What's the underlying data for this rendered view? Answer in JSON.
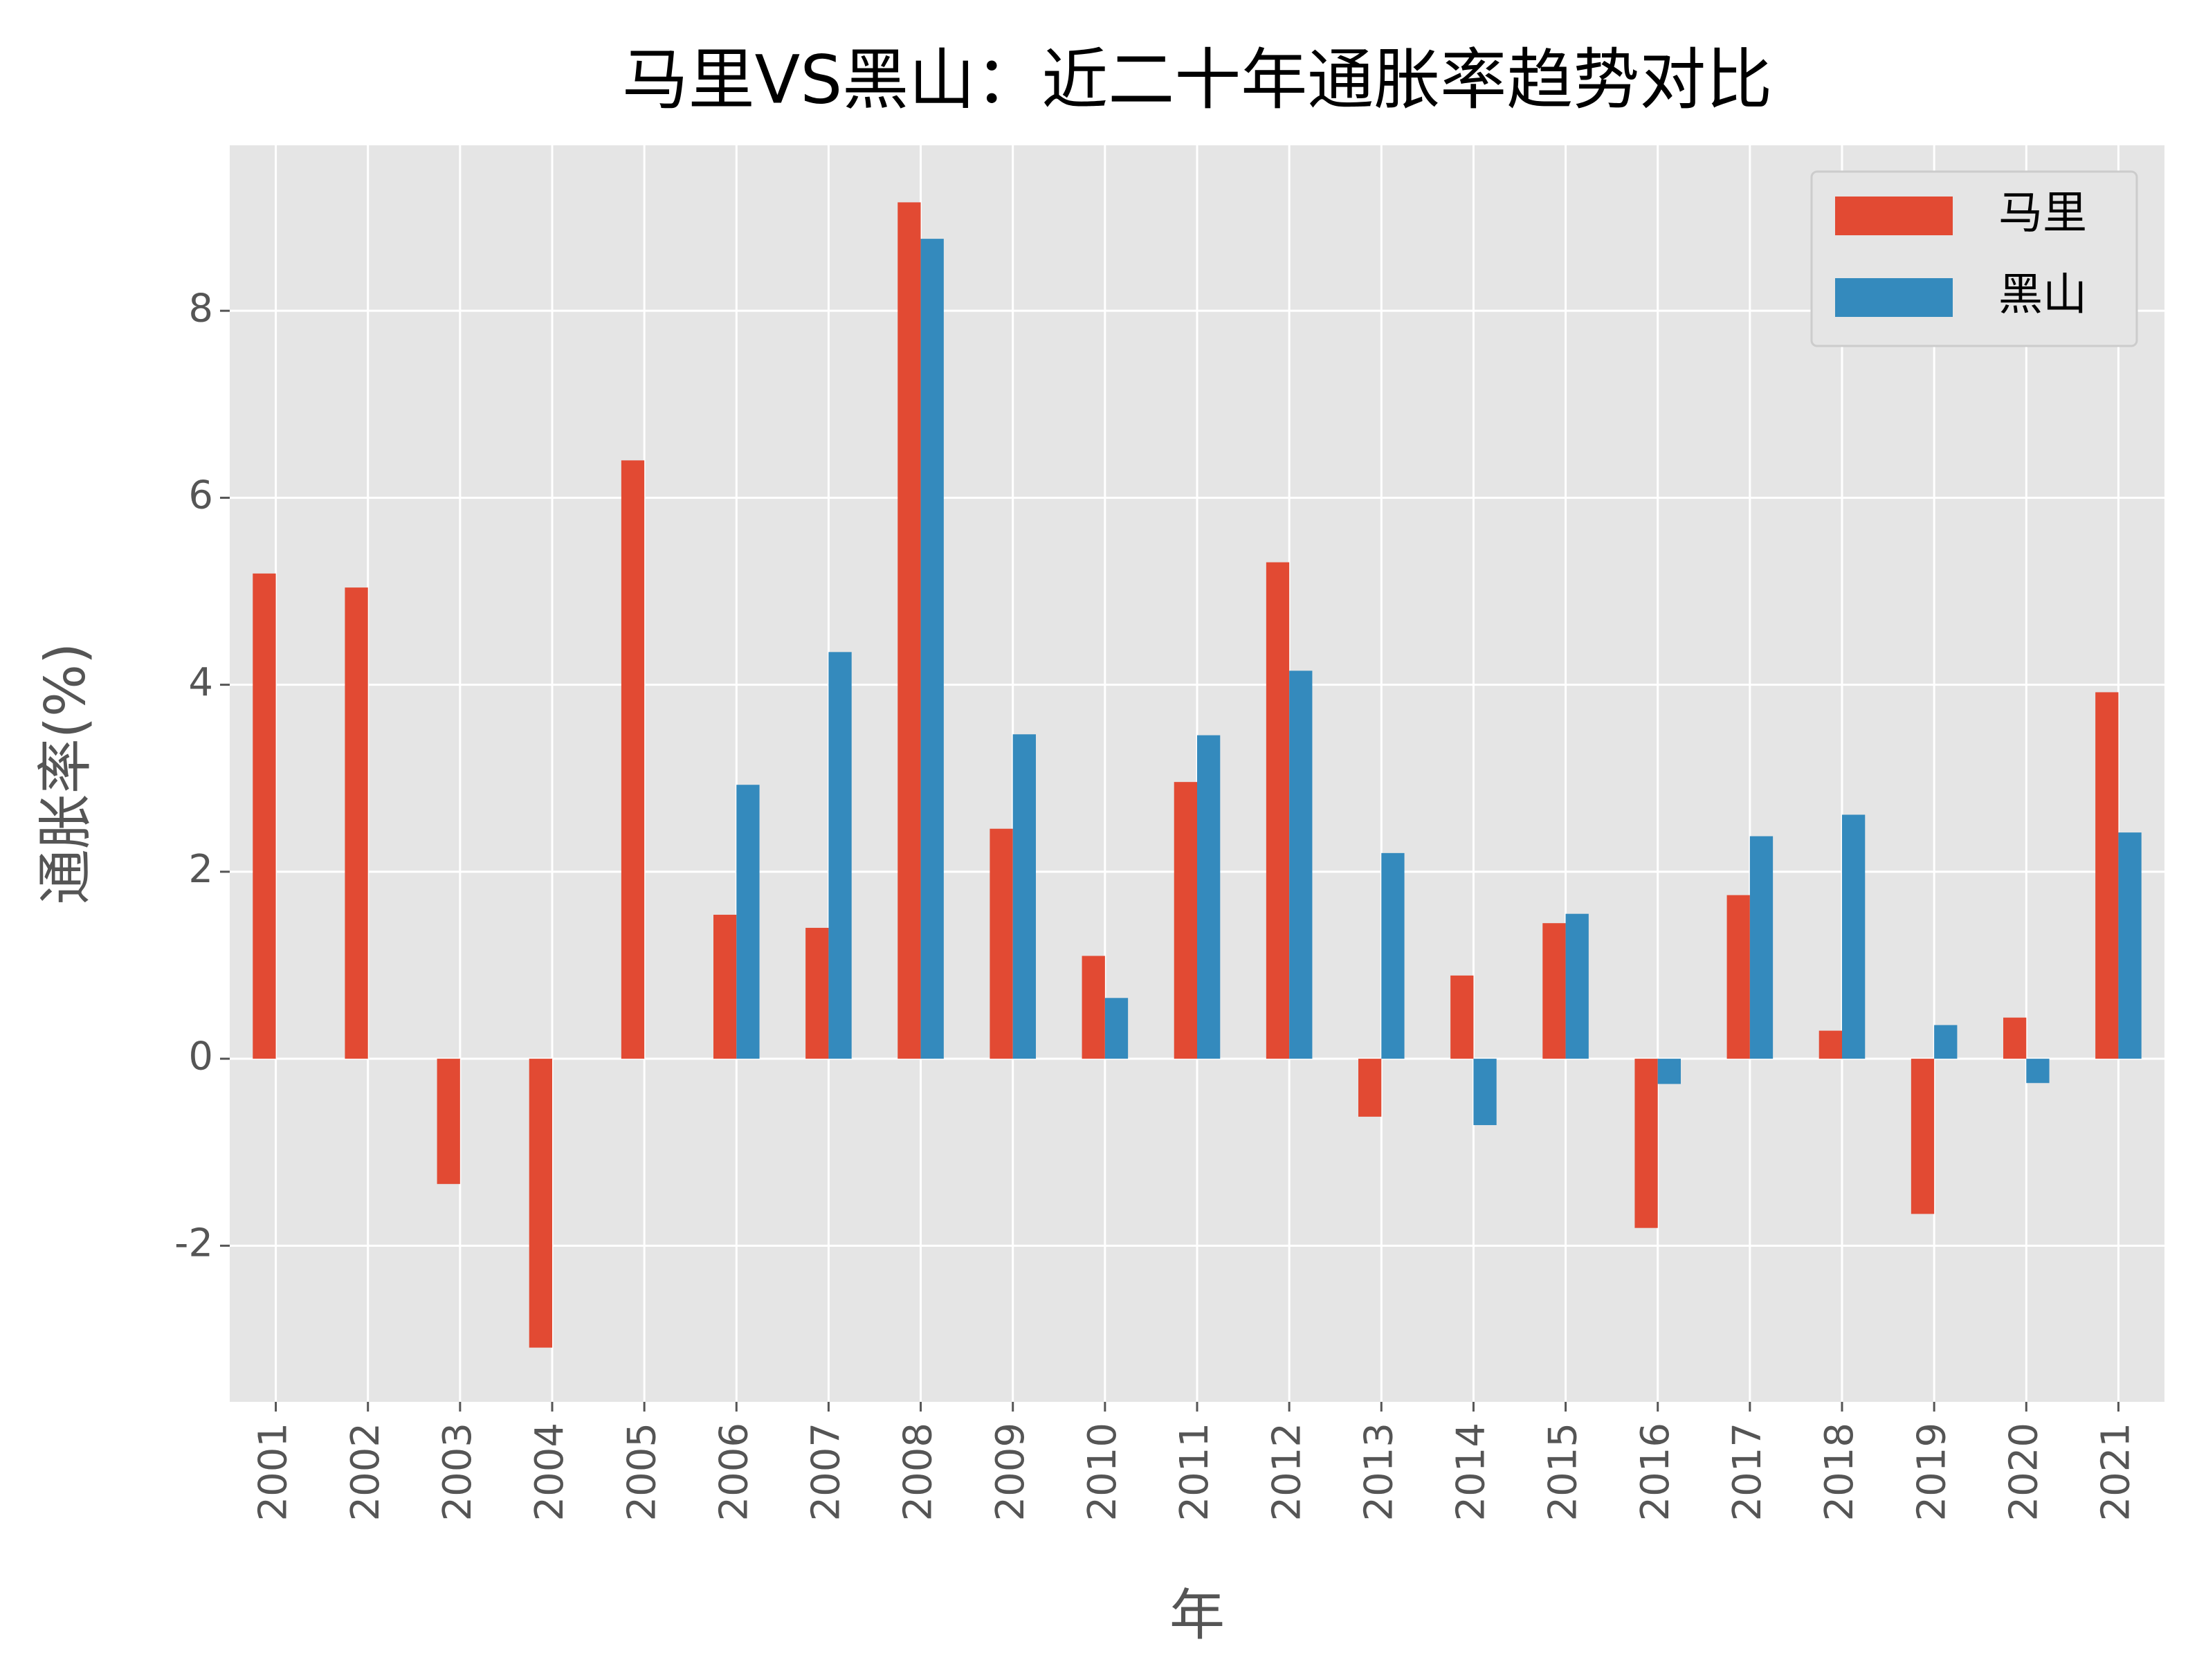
{
  "chart_data": {
    "type": "bar",
    "title": "马里VS黑山：近二十年通胀率趋势对比",
    "x_label": "年",
    "y_label": "通胀率(%)",
    "categories": [
      "2001",
      "2002",
      "2003",
      "2004",
      "2005",
      "2006",
      "2007",
      "2008",
      "2009",
      "2010",
      "2011",
      "2012",
      "2013",
      "2014",
      "2015",
      "2016",
      "2017",
      "2018",
      "2019",
      "2020",
      "2021"
    ],
    "series": [
      {
        "name": "马里",
        "color": "#e24a33",
        "values": [
          5.19,
          5.04,
          -1.34,
          -3.09,
          6.4,
          1.54,
          1.4,
          9.16,
          2.46,
          1.1,
          2.96,
          5.31,
          -0.62,
          0.89,
          1.45,
          -1.81,
          1.75,
          0.3,
          -1.66,
          0.44,
          3.92
        ]
      },
      {
        "name": "黑山",
        "color": "#348abd",
        "values": [
          null,
          null,
          null,
          null,
          null,
          2.93,
          4.35,
          8.77,
          3.47,
          0.65,
          3.46,
          4.15,
          2.2,
          -0.71,
          1.55,
          -0.27,
          2.38,
          2.61,
          0.36,
          -0.26,
          2.42
        ]
      }
    ],
    "ylim": [
      -3.67,
      9.77
    ],
    "yticks": [
      -2,
      0,
      2,
      4,
      6,
      8
    ],
    "grid": true,
    "legend": "upper right"
  }
}
